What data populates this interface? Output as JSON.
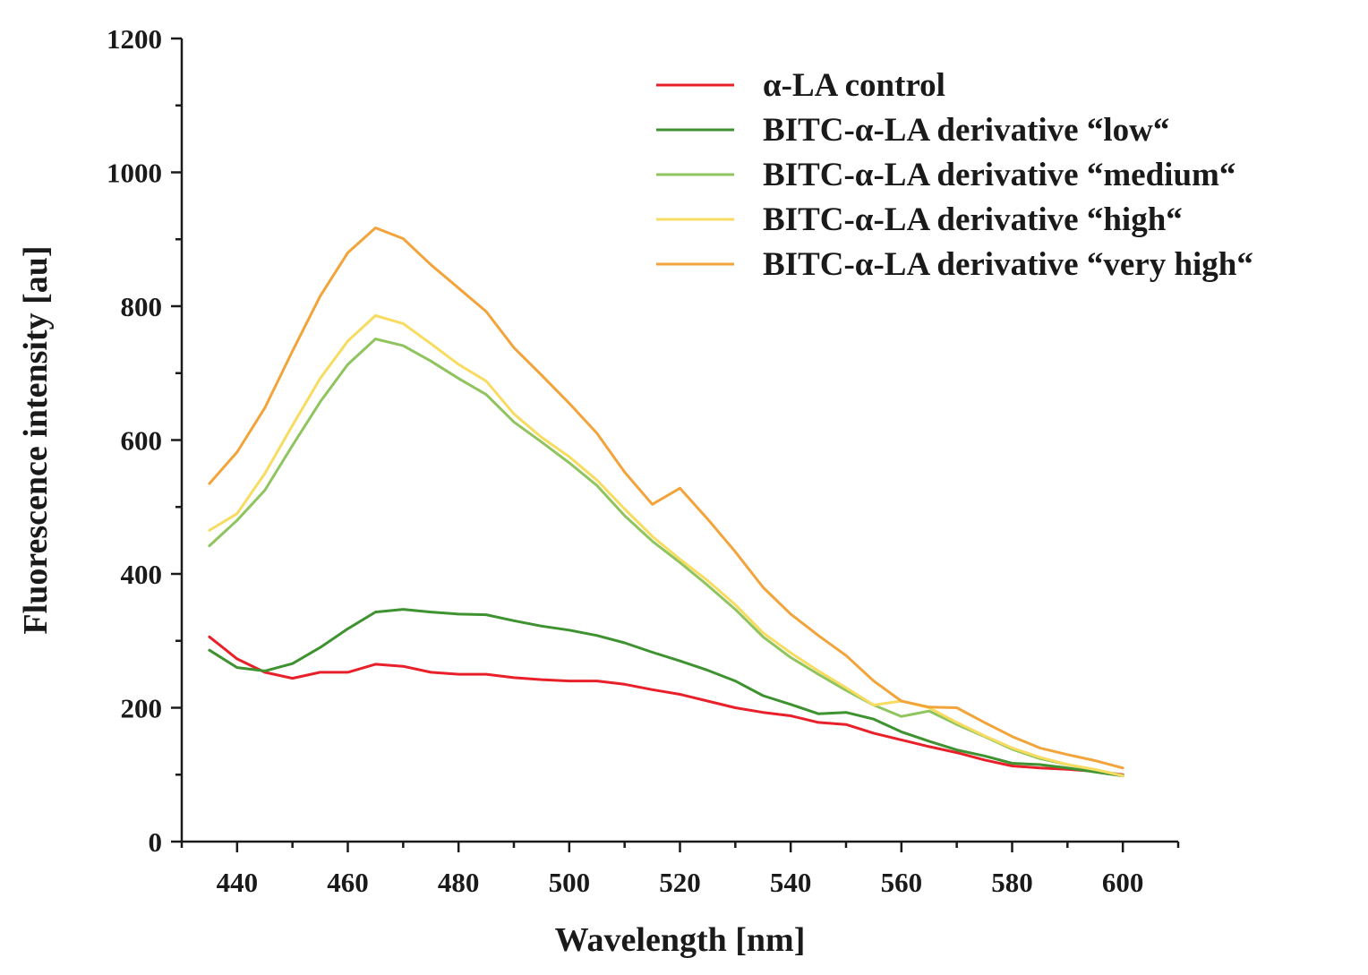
{
  "chart_data": {
    "type": "line",
    "title": "",
    "xlabel": "Wavelength [nm]",
    "ylabel": "Fluorescence intensity [au]",
    "xlim": [
      430,
      610
    ],
    "ylim": [
      0,
      1200
    ],
    "x_ticks": [
      440,
      460,
      480,
      500,
      520,
      540,
      560,
      580,
      600
    ],
    "y_ticks": [
      0,
      200,
      400,
      600,
      800,
      1000,
      1200
    ],
    "legend_position": "top-right",
    "grid": false,
    "x": [
      435,
      440,
      445,
      450,
      455,
      460,
      465,
      470,
      475,
      480,
      485,
      490,
      495,
      500,
      505,
      510,
      515,
      520,
      525,
      530,
      535,
      540,
      545,
      550,
      555,
      560,
      565,
      570,
      575,
      580,
      585,
      590,
      595,
      600
    ],
    "series": [
      {
        "name": "α-LA control",
        "color": "#e8202a",
        "values": [
          306,
          273,
          253,
          244,
          253,
          253,
          265,
          262,
          253,
          250,
          250,
          245,
          242,
          240,
          240,
          235,
          227,
          220,
          210,
          200,
          193,
          188,
          178,
          175,
          162,
          152,
          142,
          133,
          122,
          113,
          110,
          108,
          105,
          100
        ]
      },
      {
        "name": "BITC-α-LA derivative “low“",
        "color": "#3e9230",
        "values": [
          286,
          260,
          255,
          266,
          290,
          318,
          343,
          347,
          343,
          340,
          339,
          330,
          322,
          316,
          308,
          297,
          283,
          270,
          256,
          240,
          218,
          205,
          191,
          193,
          183,
          164,
          150,
          137,
          128,
          117,
          115,
          110,
          104,
          98
        ]
      },
      {
        "name": "BITC-α-LA derivative “medium“",
        "color": "#8fc45f",
        "values": [
          442,
          480,
          525,
          592,
          657,
          713,
          751,
          741,
          718,
          692,
          668,
          627,
          597,
          566,
          532,
          487,
          449,
          417,
          383,
          347,
          306,
          275,
          250,
          226,
          204,
          187,
          195,
          175,
          157,
          138,
          124,
          115,
          107,
          99
        ]
      },
      {
        "name": "BITC-α-LA derivative “high“",
        "color": "#f7dc61",
        "values": [
          465,
          490,
          550,
          622,
          692,
          748,
          786,
          774,
          744,
          713,
          688,
          639,
          604,
          575,
          540,
          497,
          456,
          422,
          390,
          354,
          312,
          282,
          255,
          230,
          204,
          210,
          200,
          178,
          158,
          140,
          126,
          115,
          108,
          98
        ]
      },
      {
        "name": "BITC-α-LA derivative “very high“",
        "color": "#f2a43b",
        "values": [
          535,
          582,
          648,
          733,
          815,
          880,
          917,
          901,
          862,
          827,
          792,
          738,
          697,
          655,
          610,
          552,
          504,
          528,
          482,
          433,
          380,
          340,
          308,
          278,
          240,
          210,
          201,
          200,
          178,
          157,
          140,
          130,
          121,
          110
        ]
      }
    ]
  }
}
